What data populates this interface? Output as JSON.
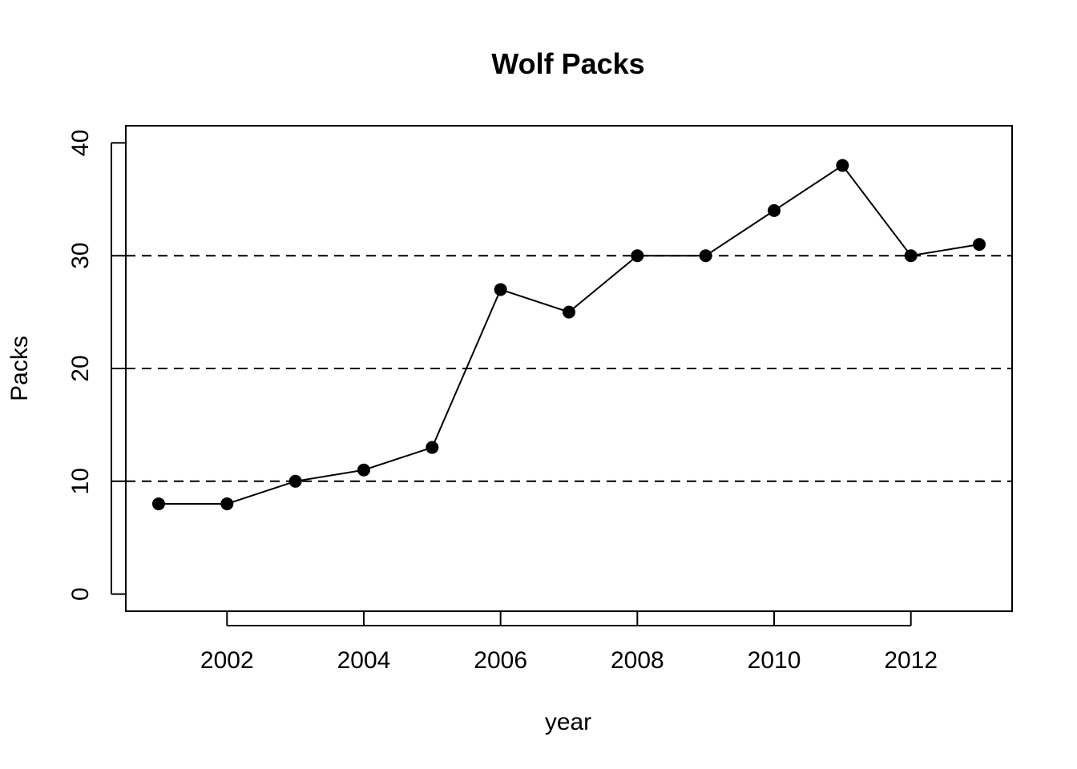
{
  "chart_data": {
    "type": "line",
    "title": "Wolf Packs",
    "xlabel": "year",
    "ylabel": "Packs",
    "x": [
      2001,
      2002,
      2003,
      2004,
      2005,
      2006,
      2007,
      2008,
      2009,
      2010,
      2011,
      2012,
      2013
    ],
    "series": [
      {
        "values": [
          8,
          8,
          10,
          11,
          13,
          27,
          25,
          30,
          30,
          34,
          38,
          30,
          31
        ]
      }
    ],
    "xlim": [
      2000.52,
      2013.48
    ],
    "ylim": [
      -1.52,
      41.52
    ],
    "x_ticks": [
      2002,
      2004,
      2006,
      2008,
      2010,
      2012
    ],
    "y_ticks": [
      0,
      10,
      20,
      30,
      40
    ],
    "reference_lines_y": [
      10,
      20,
      30
    ],
    "reference_line_style": "dashed",
    "marker": "filled-circle",
    "grid": false,
    "legend": "none",
    "colors": {
      "line": "#000000",
      "points": "#000000",
      "background": "#ffffff"
    }
  }
}
